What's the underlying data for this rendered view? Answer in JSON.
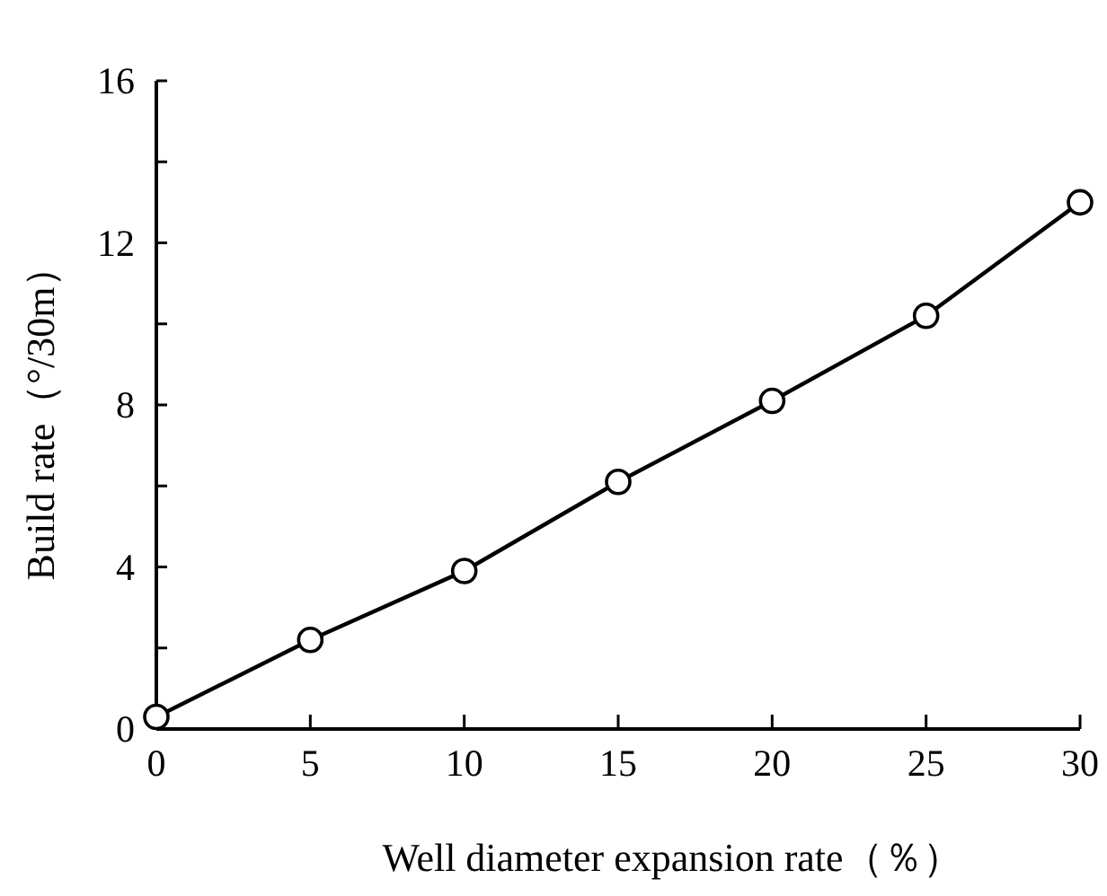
{
  "chart_data": {
    "type": "line",
    "xlabel": "Well diameter expansion rate（％）",
    "ylabel": "Build rate（°/30m）",
    "x": [
      0,
      5,
      10,
      15,
      20,
      25,
      30
    ],
    "series": [
      {
        "color": "#000000",
        "values": [
          0.3,
          2.2,
          3.9,
          6.1,
          8.1,
          10.2,
          13.0
        ]
      }
    ],
    "marker": "circle",
    "line_style": "solid",
    "xlim": [
      0,
      30
    ],
    "xticks": [
      0,
      5,
      10,
      15,
      20,
      25,
      30
    ],
    "ylim": [
      0,
      16
    ],
    "yticks": [
      0,
      {
        "value": 2,
        "label": null
      },
      4,
      {
        "value": 6,
        "label": null
      },
      8,
      {
        "value": 10,
        "label": null
      },
      12,
      {
        "value": 14,
        "label": null
      },
      16
    ]
  }
}
